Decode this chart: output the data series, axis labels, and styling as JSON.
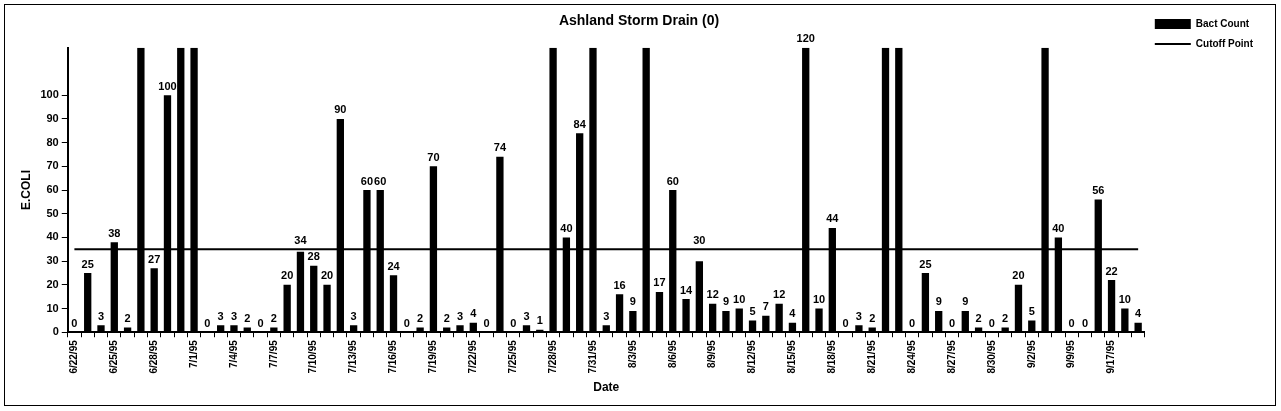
{
  "chart_data": {
    "type": "bar",
    "title": "Ashland Storm Drain (0)",
    "xlabel": "Date",
    "ylabel": "E.COLI",
    "categories": [
      "6/22/95",
      null,
      null,
      "6/25/95",
      null,
      null,
      "6/28/95",
      null,
      null,
      "7/1/95",
      null,
      null,
      "7/4/95",
      null,
      null,
      "7/7/95",
      null,
      null,
      "7/10/95",
      null,
      null,
      "7/13/95",
      null,
      null,
      "7/16/95",
      null,
      null,
      "7/19/95",
      null,
      null,
      "7/22/95",
      null,
      null,
      "7/25/95",
      null,
      null,
      "7/28/95",
      null,
      null,
      "7/31/95",
      null,
      null,
      "8/3/95",
      null,
      null,
      "8/6/95",
      null,
      null,
      "8/9/95",
      null,
      null,
      "8/12/95",
      null,
      null,
      "8/15/95",
      null,
      null,
      "8/18/95",
      null,
      null,
      "8/21/95",
      null,
      null,
      "8/24/95",
      null,
      null,
      "8/27/95",
      null,
      null,
      "8/30/95",
      null,
      null,
      "9/2/95",
      null,
      null,
      "9/9/95",
      null,
      null,
      "9/17/95",
      null,
      null
    ],
    "series": [
      {
        "name": "Bact Count",
        "color": "#000000",
        "values": [
          0,
          25,
          3,
          38,
          2,
          120,
          27,
          100,
          120,
          120,
          0,
          3,
          3,
          2,
          0,
          2,
          20,
          34,
          28,
          20,
          90,
          3,
          60,
          60,
          24,
          0,
          2,
          70,
          2,
          3,
          4,
          0,
          74,
          0,
          3,
          1,
          120,
          40,
          84,
          120,
          3,
          16,
          9,
          120,
          17,
          60,
          14,
          30,
          12,
          9,
          10,
          5,
          7,
          12,
          4,
          120,
          10,
          44,
          0,
          3,
          2,
          120,
          120,
          0,
          25,
          9,
          0,
          9,
          2,
          0,
          2,
          20,
          5,
          120,
          40,
          0,
          0,
          56,
          22,
          10,
          4
        ],
        "value_labels": [
          "0",
          "25",
          "3",
          "38",
          "2",
          null,
          "27",
          "100",
          null,
          null,
          "0",
          "3",
          "3",
          "2",
          "0",
          "2",
          "20",
          "34",
          "28",
          "20",
          "90",
          "3",
          "60",
          "60",
          "24",
          "0",
          "2",
          "70",
          "2",
          "3",
          "4",
          "0",
          "74",
          "0",
          "3",
          "1",
          null,
          "40",
          "84",
          null,
          "3",
          "16",
          "9",
          null,
          "17",
          "60",
          "14",
          "30",
          "12",
          "9",
          "10",
          "5",
          "7",
          "12",
          "4",
          "120",
          "10",
          "44",
          "0",
          "3",
          "2",
          null,
          null,
          "0",
          "25",
          "9",
          "0",
          "9",
          "2",
          "0",
          "2",
          "20",
          "5",
          null,
          "40",
          "0",
          "0",
          "56",
          "22",
          "10",
          "4"
        ]
      },
      {
        "name": "Cutoff Point",
        "type": "line",
        "color": "#000000",
        "values": [
          35,
          35,
          35,
          35,
          35,
          35,
          35,
          35,
          35,
          35,
          35,
          35,
          35,
          35,
          35,
          35,
          35,
          35,
          35,
          35,
          35,
          35,
          35,
          35,
          35,
          35,
          35,
          35,
          35,
          35,
          35,
          35,
          35,
          35,
          35,
          35,
          35,
          35,
          35,
          35,
          35,
          35,
          35,
          35,
          35,
          35,
          35,
          35,
          35,
          35,
          35,
          35,
          35,
          35,
          35,
          35,
          35,
          35,
          35,
          35,
          35,
          35,
          35,
          35,
          35,
          35,
          35,
          35,
          35,
          35,
          35,
          35,
          35,
          35,
          35,
          35,
          35,
          35,
          35,
          35,
          35
        ]
      }
    ],
    "ylim": [
      0,
      120
    ],
    "yticks": [
      0,
      10,
      20,
      30,
      40,
      50,
      60,
      70,
      80,
      90,
      100
    ],
    "legend": "top right",
    "marker": "none",
    "line_style": "solid",
    "grid": false
  }
}
